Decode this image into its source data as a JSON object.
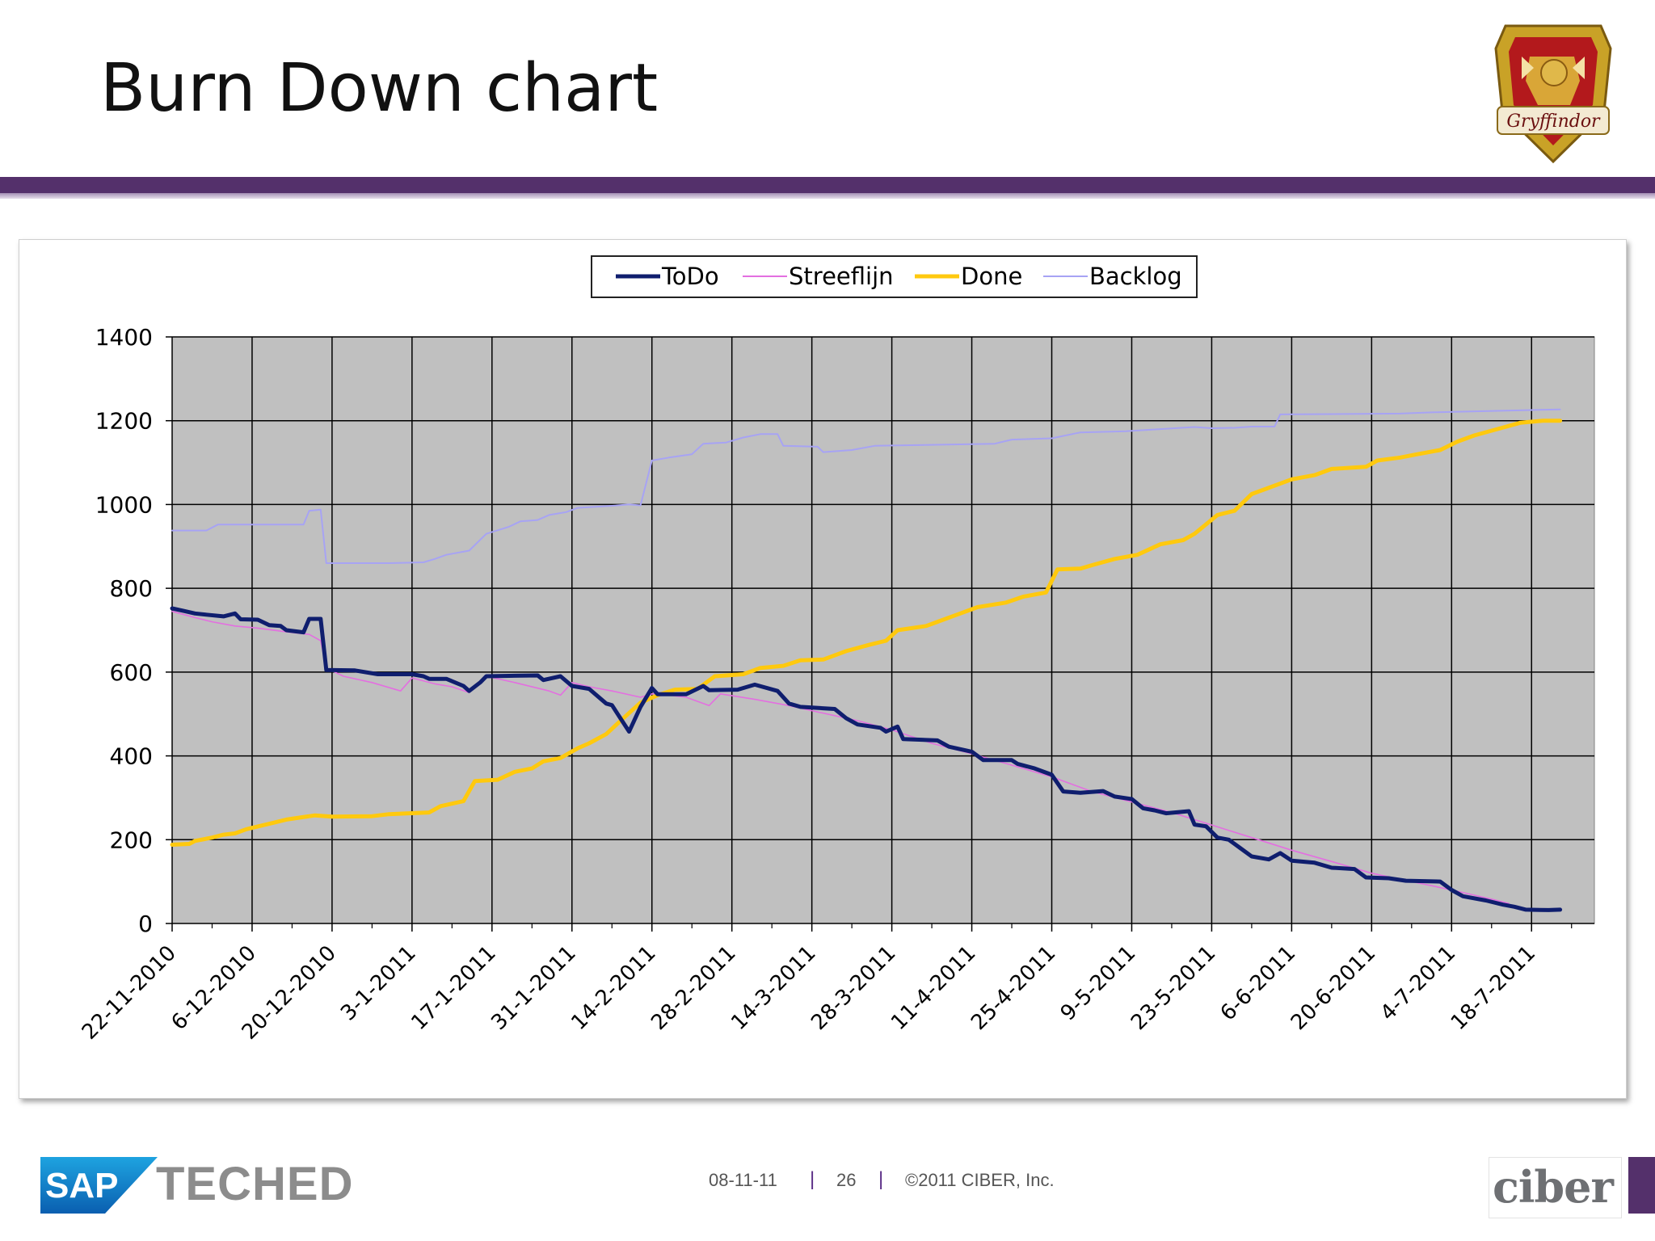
{
  "slide": {
    "title": "Burn Down chart",
    "footer": {
      "date": "08-11-11",
      "page": "26",
      "copyright": "©2011 CIBER, Inc.",
      "separator": "|"
    },
    "logos": {
      "crest_text": "Gryffindor",
      "sap_text": "SAP",
      "teched_text": "TECHED",
      "ciber_text": "ciber"
    }
  },
  "colors": {
    "todo": "#0f1e6e",
    "streeflijn": "#e36fe0",
    "done": "#ffc90e",
    "backlog": "#a7a3f4",
    "plot_bg": "#c0c0c0",
    "band": "#54306b"
  },
  "chart_data": {
    "type": "line",
    "title": "",
    "xlabel": "",
    "ylabel": "",
    "ylim": [
      0,
      1400
    ],
    "yticks": [
      "0",
      "200",
      "400",
      "600",
      "800",
      "1000",
      "1200",
      "1400"
    ],
    "xlim": [
      "2010-11-22",
      "2011-07-29"
    ],
    "xtick_labels": [
      "22-11-2010",
      "6-12-2010",
      "20-12-2010",
      "3-1-2011",
      "17-1-2011",
      "31-1-2011",
      "14-2-2011",
      "28-2-2011",
      "14-3-2011",
      "28-3-2011",
      "11-4-2011",
      "25-4-2011",
      "9-5-2011",
      "23-5-2011",
      "6-6-2011",
      "20-6-2011",
      "4-7-2011",
      "18-7-2011"
    ],
    "grid": true,
    "legend_position": "top-center",
    "series": [
      {
        "name": "ToDo",
        "points": [
          [
            "2010-11-22",
            752
          ],
          [
            "2010-11-24",
            746
          ],
          [
            "2010-11-26",
            740
          ],
          [
            "2010-11-28",
            737
          ],
          [
            "2010-12-01",
            733
          ],
          [
            "2010-12-03",
            740
          ],
          [
            "2010-12-04",
            726
          ],
          [
            "2010-12-07",
            725
          ],
          [
            "2010-12-09",
            712
          ],
          [
            "2010-12-11",
            710
          ],
          [
            "2010-12-12",
            700
          ],
          [
            "2010-12-15",
            695
          ],
          [
            "2010-12-16",
            727
          ],
          [
            "2010-12-18",
            727
          ],
          [
            "2010-12-19",
            605
          ],
          [
            "2010-12-24",
            604
          ],
          [
            "2010-12-28",
            595
          ],
          [
            "2011-01-03",
            595
          ],
          [
            "2011-01-05",
            590
          ],
          [
            "2011-01-06",
            584
          ],
          [
            "2011-01-09",
            584
          ],
          [
            "2011-01-12",
            567
          ],
          [
            "2011-01-13",
            555
          ],
          [
            "2011-01-15",
            576
          ],
          [
            "2011-01-16",
            590
          ],
          [
            "2011-01-20",
            591
          ],
          [
            "2011-01-25",
            592
          ],
          [
            "2011-01-26",
            581
          ],
          [
            "2011-01-29",
            590
          ],
          [
            "2011-01-31",
            567
          ],
          [
            "2011-02-03",
            560
          ],
          [
            "2011-02-06",
            525
          ],
          [
            "2011-02-07",
            521
          ],
          [
            "2011-02-08",
            500
          ],
          [
            "2011-02-10",
            458
          ],
          [
            "2011-02-12",
            517
          ],
          [
            "2011-02-14",
            562
          ],
          [
            "2011-02-15",
            547
          ],
          [
            "2011-02-20",
            547
          ],
          [
            "2011-02-23",
            567
          ],
          [
            "2011-02-24",
            557
          ],
          [
            "2011-03-01",
            558
          ],
          [
            "2011-03-04",
            570
          ],
          [
            "2011-03-08",
            555
          ],
          [
            "2011-03-10",
            525
          ],
          [
            "2011-03-12",
            517
          ],
          [
            "2011-03-18",
            512
          ],
          [
            "2011-03-20",
            490
          ],
          [
            "2011-03-22",
            475
          ],
          [
            "2011-03-26",
            467
          ],
          [
            "2011-03-27",
            458
          ],
          [
            "2011-03-29",
            470
          ],
          [
            "2011-03-30",
            440
          ],
          [
            "2011-04-05",
            437
          ],
          [
            "2011-04-07",
            422
          ],
          [
            "2011-04-11",
            410
          ],
          [
            "2011-04-13",
            390
          ],
          [
            "2011-04-18",
            390
          ],
          [
            "2011-04-19",
            381
          ],
          [
            "2011-04-22",
            370
          ],
          [
            "2011-04-25",
            355
          ],
          [
            "2011-04-27",
            315
          ],
          [
            "2011-04-30",
            312
          ],
          [
            "2011-05-04",
            316
          ],
          [
            "2011-05-06",
            303
          ],
          [
            "2011-05-09",
            297
          ],
          [
            "2011-05-11",
            275
          ],
          [
            "2011-05-13",
            270
          ],
          [
            "2011-05-15",
            263
          ],
          [
            "2011-05-19",
            268
          ],
          [
            "2011-05-20",
            236
          ],
          [
            "2011-05-22",
            232
          ],
          [
            "2011-05-24",
            205
          ],
          [
            "2011-05-26",
            200
          ],
          [
            "2011-05-28",
            180
          ],
          [
            "2011-05-30",
            160
          ],
          [
            "2011-06-02",
            153
          ],
          [
            "2011-06-04",
            168
          ],
          [
            "2011-06-06",
            150
          ],
          [
            "2011-06-10",
            145
          ],
          [
            "2011-06-13",
            133
          ],
          [
            "2011-06-17",
            130
          ],
          [
            "2011-06-19",
            110
          ],
          [
            "2011-06-23",
            108
          ],
          [
            "2011-06-26",
            102
          ],
          [
            "2011-07-02",
            100
          ],
          [
            "2011-07-04",
            80
          ],
          [
            "2011-07-06",
            65
          ],
          [
            "2011-07-10",
            55
          ],
          [
            "2011-07-13",
            45
          ],
          [
            "2011-07-15",
            40
          ],
          [
            "2011-07-17",
            33
          ],
          [
            "2011-07-21",
            32
          ],
          [
            "2011-07-23",
            33
          ]
        ]
      },
      {
        "name": "Streeflijn",
        "points": [
          [
            "2010-11-22",
            745
          ],
          [
            "2010-11-26",
            730
          ],
          [
            "2010-11-29",
            720
          ],
          [
            "2010-12-03",
            710
          ],
          [
            "2010-12-07",
            705
          ],
          [
            "2010-12-12",
            696
          ],
          [
            "2010-12-16",
            690
          ],
          [
            "2010-12-18",
            675
          ],
          [
            "2010-12-19",
            610
          ],
          [
            "2010-12-22",
            590
          ],
          [
            "2010-12-27",
            575
          ],
          [
            "2011-01-01",
            555
          ],
          [
            "2011-01-03",
            586
          ],
          [
            "2011-01-07",
            572
          ],
          [
            "2011-01-10",
            565
          ],
          [
            "2011-01-13",
            551
          ],
          [
            "2011-01-16",
            590
          ],
          [
            "2011-01-21",
            575
          ],
          [
            "2011-01-27",
            555
          ],
          [
            "2011-01-29",
            545
          ],
          [
            "2011-01-31",
            575
          ],
          [
            "2011-02-03",
            565
          ],
          [
            "2011-02-07",
            555
          ],
          [
            "2011-02-12",
            540
          ],
          [
            "2011-02-14",
            548
          ],
          [
            "2011-02-17",
            545
          ],
          [
            "2011-02-20",
            540
          ],
          [
            "2011-02-24",
            520
          ],
          [
            "2011-02-26",
            548
          ],
          [
            "2011-03-04",
            535
          ],
          [
            "2011-03-10",
            520
          ],
          [
            "2011-03-14",
            508
          ],
          [
            "2011-03-22",
            484
          ],
          [
            "2011-03-28",
            462
          ],
          [
            "2011-04-04",
            430
          ],
          [
            "2011-04-11",
            405
          ],
          [
            "2011-04-18",
            378
          ],
          [
            "2011-04-25",
            350
          ],
          [
            "2011-05-02",
            315
          ],
          [
            "2011-05-09",
            290
          ],
          [
            "2011-05-16",
            265
          ],
          [
            "2011-05-23",
            235
          ],
          [
            "2011-05-30",
            205
          ],
          [
            "2011-06-06",
            175
          ],
          [
            "2011-06-13",
            148
          ],
          [
            "2011-06-20",
            120
          ],
          [
            "2011-06-27",
            100
          ],
          [
            "2011-07-04",
            80
          ],
          [
            "2011-07-11",
            58
          ],
          [
            "2011-07-14",
            48
          ]
        ]
      },
      {
        "name": "Done",
        "points": [
          [
            "2010-11-22",
            188
          ],
          [
            "2010-11-25",
            190
          ],
          [
            "2010-11-26",
            197
          ],
          [
            "2010-11-29",
            205
          ],
          [
            "2010-12-01",
            212
          ],
          [
            "2010-12-03",
            215
          ],
          [
            "2010-12-05",
            225
          ],
          [
            "2010-12-09",
            238
          ],
          [
            "2010-12-12",
            248
          ],
          [
            "2010-12-17",
            258
          ],
          [
            "2010-12-20",
            255
          ],
          [
            "2010-12-27",
            256
          ],
          [
            "2010-12-30",
            261
          ],
          [
            "2011-01-06",
            265
          ],
          [
            "2011-01-08",
            280
          ],
          [
            "2011-01-12",
            292
          ],
          [
            "2011-01-14",
            340
          ],
          [
            "2011-01-18",
            343
          ],
          [
            "2011-01-21",
            362
          ],
          [
            "2011-01-24",
            370
          ],
          [
            "2011-01-26",
            387
          ],
          [
            "2011-01-29",
            395
          ],
          [
            "2011-02-01",
            418
          ],
          [
            "2011-02-03",
            430
          ],
          [
            "2011-02-06",
            452
          ],
          [
            "2011-02-09",
            490
          ],
          [
            "2011-02-12",
            527
          ],
          [
            "2011-02-15",
            545
          ],
          [
            "2011-02-18",
            558
          ],
          [
            "2011-02-22",
            560
          ],
          [
            "2011-02-25",
            590
          ],
          [
            "2011-03-02",
            595
          ],
          [
            "2011-03-05",
            610
          ],
          [
            "2011-03-09",
            615
          ],
          [
            "2011-03-12",
            628
          ],
          [
            "2011-03-16",
            630
          ],
          [
            "2011-03-20",
            650
          ],
          [
            "2011-03-24",
            665
          ],
          [
            "2011-03-27",
            675
          ],
          [
            "2011-03-29",
            700
          ],
          [
            "2011-04-03",
            710
          ],
          [
            "2011-04-05",
            720
          ],
          [
            "2011-04-08",
            735
          ],
          [
            "2011-04-12",
            755
          ],
          [
            "2011-04-17",
            766
          ],
          [
            "2011-04-20",
            780
          ],
          [
            "2011-04-24",
            790
          ],
          [
            "2011-04-26",
            845
          ],
          [
            "2011-04-30",
            847
          ],
          [
            "2011-05-02",
            855
          ],
          [
            "2011-05-06",
            870
          ],
          [
            "2011-05-10",
            880
          ],
          [
            "2011-05-14",
            905
          ],
          [
            "2011-05-18",
            915
          ],
          [
            "2011-05-20",
            930
          ],
          [
            "2011-05-24",
            975
          ],
          [
            "2011-05-27",
            985
          ],
          [
            "2011-05-30",
            1025
          ],
          [
            "2011-06-03",
            1045
          ],
          [
            "2011-06-06",
            1060
          ],
          [
            "2011-06-10",
            1070
          ],
          [
            "2011-06-13",
            1085
          ],
          [
            "2011-06-19",
            1090
          ],
          [
            "2011-06-21",
            1105
          ],
          [
            "2011-06-25",
            1112
          ],
          [
            "2011-06-28",
            1120
          ],
          [
            "2011-07-02",
            1130
          ],
          [
            "2011-07-05",
            1150
          ],
          [
            "2011-07-08",
            1165
          ],
          [
            "2011-07-12",
            1180
          ],
          [
            "2011-07-16",
            1195
          ],
          [
            "2011-07-20",
            1200
          ],
          [
            "2011-07-23",
            1200
          ]
        ]
      },
      {
        "name": "Backlog",
        "points": [
          [
            "2010-11-22",
            938
          ],
          [
            "2010-11-28",
            938
          ],
          [
            "2010-11-30",
            952
          ],
          [
            "2010-12-15",
            952
          ],
          [
            "2010-12-16",
            985
          ],
          [
            "2010-12-18",
            988
          ],
          [
            "2010-12-19",
            860
          ],
          [
            "2010-12-30",
            860
          ],
          [
            "2011-01-05",
            862
          ],
          [
            "2011-01-07",
            870
          ],
          [
            "2011-01-09",
            880
          ],
          [
            "2011-01-13",
            890
          ],
          [
            "2011-01-16",
            930
          ],
          [
            "2011-01-20",
            947
          ],
          [
            "2011-01-22",
            960
          ],
          [
            "2011-01-25",
            963
          ],
          [
            "2011-01-27",
            975
          ],
          [
            "2011-01-30",
            982
          ],
          [
            "2011-02-01",
            992
          ],
          [
            "2011-02-07",
            997
          ],
          [
            "2011-02-10",
            1000
          ],
          [
            "2011-02-12",
            998
          ],
          [
            "2011-02-14",
            1105
          ],
          [
            "2011-02-17",
            1112
          ],
          [
            "2011-02-21",
            1120
          ],
          [
            "2011-02-23",
            1145
          ],
          [
            "2011-02-27",
            1148
          ],
          [
            "2011-03-02",
            1160
          ],
          [
            "2011-03-05",
            1168
          ],
          [
            "2011-03-08",
            1168
          ],
          [
            "2011-03-09",
            1140
          ],
          [
            "2011-03-15",
            1138
          ],
          [
            "2011-03-16",
            1125
          ],
          [
            "2011-03-21",
            1130
          ],
          [
            "2011-03-25",
            1140
          ],
          [
            "2011-04-15",
            1145
          ],
          [
            "2011-04-18",
            1155
          ],
          [
            "2011-04-25",
            1158
          ],
          [
            "2011-04-30",
            1172
          ],
          [
            "2011-05-08",
            1175
          ],
          [
            "2011-05-14",
            1180
          ],
          [
            "2011-05-20",
            1185
          ],
          [
            "2011-05-23",
            1182
          ],
          [
            "2011-05-27",
            1183
          ],
          [
            "2011-05-30",
            1186
          ],
          [
            "2011-06-03",
            1186
          ],
          [
            "2011-06-04",
            1215
          ],
          [
            "2011-06-25",
            1217
          ],
          [
            "2011-07-01",
            1220
          ],
          [
            "2011-07-23",
            1227
          ]
        ]
      }
    ]
  }
}
